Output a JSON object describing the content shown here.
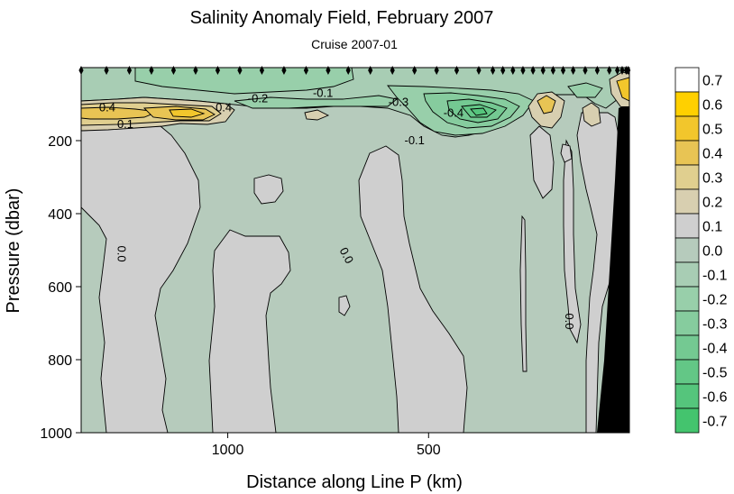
{
  "chart_data": {
    "type": "heatmap",
    "subtype": "filled-contour",
    "title": "Salinity Anomaly Field,  February 2007",
    "subtitle": "Cruise 2007-01",
    "xlabel": "Distance along Line P  (km)",
    "ylabel": "Pressure  (dbar)",
    "x_reversed": true,
    "xlim": [
      1365,
      0
    ],
    "ylim": [
      1000,
      0
    ],
    "x_ticks": [
      {
        "value": 1000,
        "label": "1000"
      },
      {
        "value": 500,
        "label": "500"
      }
    ],
    "y_ticks": [
      {
        "value": 200,
        "label": "200"
      },
      {
        "value": 400,
        "label": "400"
      },
      {
        "value": 600,
        "label": "600"
      },
      {
        "value": 800,
        "label": "800"
      },
      {
        "value": 1000,
        "label": "1000"
      }
    ],
    "colorbar": {
      "position": "right",
      "levels": [
        {
          "label": "0.7",
          "color": "#ffffff"
        },
        {
          "label": "0.6",
          "color": "#ffd000"
        },
        {
          "label": "0.5",
          "color": "#f2c62c"
        },
        {
          "label": "0.4",
          "color": "#e8c454"
        },
        {
          "label": "0.3",
          "color": "#e0cf8f"
        },
        {
          "label": "0.2",
          "color": "#d8cfb0"
        },
        {
          "label": "0.1",
          "color": "#cfcfcf"
        },
        {
          "label": "0.0",
          "color": "#b6cbbc"
        },
        {
          "label": "-0.1",
          "color": "#a8cdb4"
        },
        {
          "label": "-0.2",
          "color": "#98cfaa"
        },
        {
          "label": "-0.3",
          "color": "#86cc9e"
        },
        {
          "label": "-0.4",
          "color": "#74c992"
        },
        {
          "label": "-0.5",
          "color": "#63c786"
        },
        {
          "label": "-0.6",
          "color": "#55c57c"
        },
        {
          "label": "-0.7",
          "color": "#44c46e"
        }
      ]
    },
    "stations_km": [
      1365,
      1302,
      1245,
      1190,
      1135,
      1080,
      1025,
      970,
      915,
      860,
      805,
      750,
      700,
      645,
      590,
      535,
      480,
      430,
      375,
      340,
      315,
      290,
      265,
      240,
      215,
      190,
      165,
      140,
      110,
      80,
      50,
      30,
      18,
      8,
      3
    ],
    "contour_labels": [
      {
        "text": "0.4",
        "x_km": 1300,
        "p_dbar": 110
      },
      {
        "text": "0.4",
        "x_km": 1010,
        "p_dbar": 110
      },
      {
        "text": "0.1",
        "x_km": 1255,
        "p_dbar": 155
      },
      {
        "text": "-0.2",
        "x_km": 925,
        "p_dbar": 85
      },
      {
        "text": "-0.1",
        "x_km": 763,
        "p_dbar": 70
      },
      {
        "text": "-0.3",
        "x_km": 575,
        "p_dbar": 95
      },
      {
        "text": "-0.4",
        "x_km": 438,
        "p_dbar": 125
      },
      {
        "text": "-0.1",
        "x_km": 535,
        "p_dbar": 200
      },
      {
        "text": "0.0",
        "x_km": 1265,
        "p_dbar": 510
      },
      {
        "text": "0.0",
        "x_km": 705,
        "p_dbar": 515
      },
      {
        "text": "0.0",
        "x_km": 150,
        "p_dbar": 695
      }
    ],
    "grid": false,
    "legend": "none"
  }
}
